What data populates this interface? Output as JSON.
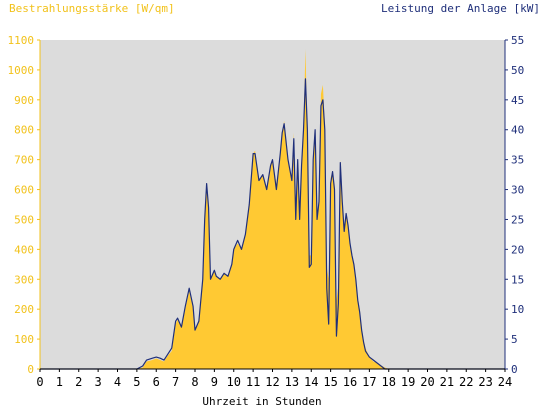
{
  "chart_data": {
    "type": "area",
    "left_axis_title": "Bestrahlungsstärke [W/qm]",
    "right_axis_title": "Leistung der Anlage [kW]",
    "xlabel": "Uhrzeit in Stunden",
    "xlim": [
      0,
      24
    ],
    "ylim_left": [
      0,
      1100
    ],
    "ylim_right": [
      0,
      55
    ],
    "x_ticks": [
      "0",
      "1",
      "2",
      "3",
      "4",
      "5",
      "6",
      "7",
      "8",
      "9",
      "10",
      "11",
      "12",
      "13",
      "14",
      "15",
      "16",
      "17",
      "18",
      "19",
      "20",
      "21",
      "22",
      "23",
      "24"
    ],
    "y_ticks_left": [
      "0",
      "100",
      "200",
      "300",
      "400",
      "500",
      "600",
      "700",
      "800",
      "900",
      "1000",
      "1100"
    ],
    "y_ticks_right": [
      "0",
      "5",
      "10",
      "15",
      "20",
      "25",
      "30",
      "35",
      "40",
      "45",
      "50",
      "55"
    ],
    "colors": {
      "plot_background": "#dcdcdc",
      "irradiance_fill": "#ffc933",
      "power_line": "#1f2f7a",
      "left_axis": "#f2c21b",
      "right_axis": "#1f2f7a"
    },
    "grid": false,
    "series": [
      {
        "name": "Bestrahlungsstärke [W/qm]",
        "axis": "left",
        "style": "area",
        "x": [
          0,
          5.0,
          5.3,
          5.5,
          5.8,
          6.0,
          6.2,
          6.4,
          6.6,
          6.8,
          7.0,
          7.1,
          7.3,
          7.5,
          7.7,
          7.9,
          8.0,
          8.2,
          8.4,
          8.5,
          8.6,
          8.7,
          8.8,
          9.0,
          9.1,
          9.3,
          9.5,
          9.7,
          9.9,
          10.0,
          10.2,
          10.4,
          10.6,
          10.8,
          11.0,
          11.1,
          11.3,
          11.5,
          11.7,
          11.9,
          12.0,
          12.2,
          12.4,
          12.5,
          12.6,
          12.8,
          13.0,
          13.1,
          13.2,
          13.3,
          13.4,
          13.5,
          13.6,
          13.7,
          13.8,
          13.9,
          14.0,
          14.1,
          14.2,
          14.3,
          14.4,
          14.5,
          14.6,
          14.7,
          14.8,
          14.9,
          15.0,
          15.1,
          15.2,
          15.3,
          15.4,
          15.5,
          15.6,
          15.7,
          15.8,
          15.9,
          16.0,
          16.1,
          16.2,
          16.3,
          16.4,
          16.5,
          16.6,
          16.7,
          16.8,
          17.0,
          17.2,
          17.4,
          17.6,
          17.8,
          18.0,
          18.2,
          18.4,
          18.6,
          18.8,
          19.0,
          19.2,
          19.4,
          19.6,
          19.8,
          20.0,
          24
        ],
        "y": [
          0,
          0,
          5,
          25,
          30,
          35,
          30,
          25,
          45,
          60,
          150,
          165,
          140,
          200,
          260,
          200,
          130,
          160,
          300,
          480,
          620,
          520,
          300,
          330,
          310,
          300,
          320,
          310,
          350,
          400,
          420,
          400,
          450,
          550,
          720,
          730,
          630,
          650,
          600,
          680,
          700,
          620,
          720,
          790,
          830,
          700,
          640,
          790,
          520,
          700,
          500,
          680,
          800,
          1070,
          800,
          380,
          380,
          700,
          800,
          500,
          560,
          920,
          950,
          820,
          340,
          300,
          640,
          660,
          600,
          230,
          280,
          700,
          560,
          470,
          520,
          480,
          420,
          380,
          350,
          300,
          240,
          200,
          140,
          100,
          70,
          40,
          25,
          20,
          12,
          5,
          0,
          0,
          0,
          0,
          0,
          0,
          0,
          0,
          0,
          0,
          0,
          0
        ]
      },
      {
        "name": "Leistung der Anlage [kW]",
        "axis": "right",
        "style": "line",
        "x": [
          0,
          5.0,
          5.3,
          5.5,
          5.8,
          6.0,
          6.2,
          6.4,
          6.6,
          6.8,
          7.0,
          7.1,
          7.3,
          7.5,
          7.7,
          7.9,
          8.0,
          8.2,
          8.4,
          8.5,
          8.6,
          8.7,
          8.8,
          9.0,
          9.1,
          9.3,
          9.5,
          9.7,
          9.9,
          10.0,
          10.2,
          10.4,
          10.6,
          10.8,
          11.0,
          11.1,
          11.3,
          11.5,
          11.7,
          11.9,
          12.0,
          12.2,
          12.4,
          12.5,
          12.6,
          12.8,
          13.0,
          13.1,
          13.2,
          13.3,
          13.4,
          13.5,
          13.6,
          13.7,
          13.8,
          13.9,
          14.0,
          14.1,
          14.2,
          14.3,
          14.4,
          14.5,
          14.6,
          14.7,
          14.8,
          14.9,
          15.0,
          15.1,
          15.2,
          15.3,
          15.4,
          15.5,
          15.6,
          15.7,
          15.8,
          15.9,
          16.0,
          16.1,
          16.2,
          16.3,
          16.4,
          16.5,
          16.6,
          16.7,
          16.8,
          17.0,
          17.2,
          17.4,
          17.6,
          17.8,
          18.0,
          18.2,
          18.4,
          18.6,
          18.8,
          19.0,
          19.2,
          19.4,
          19.6,
          19.8,
          20.0,
          24
        ],
        "y": [
          0,
          0,
          0.5,
          1.5,
          1.8,
          2,
          1.8,
          1.5,
          2.5,
          3.5,
          8,
          8.5,
          7,
          10.5,
          13.5,
          10.5,
          6.5,
          8,
          15,
          25,
          31,
          27,
          15,
          16.5,
          15.5,
          15,
          16,
          15.5,
          17.5,
          20,
          21.5,
          20,
          22.5,
          27.5,
          36,
          36,
          31.5,
          32.5,
          30,
          34,
          35,
          30,
          36,
          39.5,
          41,
          35,
          31.5,
          38.5,
          25,
          35,
          25,
          34,
          40,
          48.5,
          40,
          17,
          17.5,
          35,
          40,
          25,
          28,
          44,
          45,
          40,
          13.5,
          7.5,
          31,
          33,
          30,
          5.5,
          11,
          34.5,
          28,
          23,
          26,
          24,
          21,
          19,
          17.5,
          15,
          11.5,
          9.5,
          6.5,
          4.5,
          3,
          2,
          1.5,
          1,
          0.5,
          0,
          0,
          0,
          0,
          0,
          0,
          0,
          0,
          0,
          0,
          0,
          0,
          0
        ]
      }
    ]
  }
}
